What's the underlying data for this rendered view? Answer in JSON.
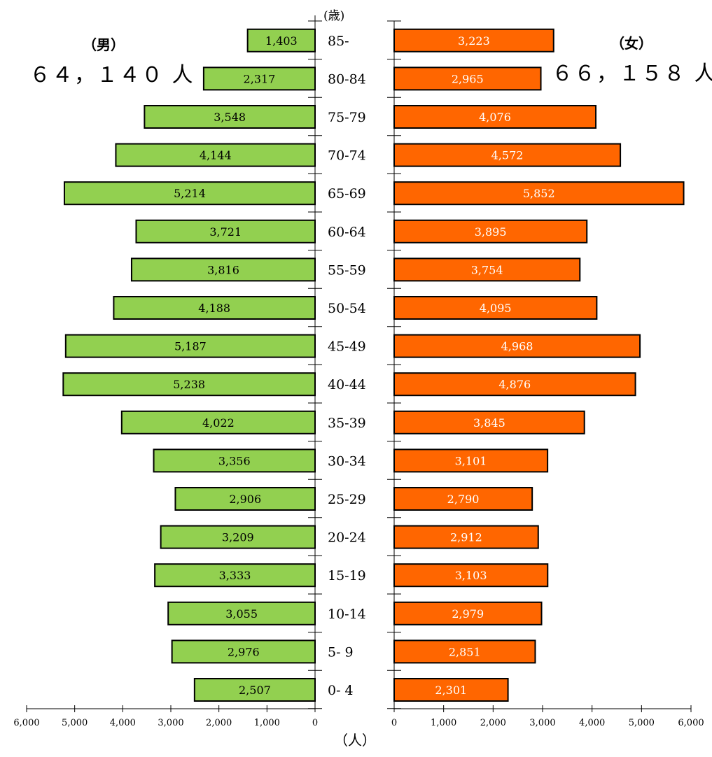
{
  "header": {
    "male_label": "（男）",
    "male_total": "６４，１４０ 人",
    "female_label": "（女）",
    "female_total": "６６，１５８ 人",
    "age_unit": "(歳)",
    "x_unit": "（人）"
  },
  "chart_data": {
    "type": "bar",
    "subtype": "population-pyramid",
    "categories": [
      "85-",
      "80-84",
      "75-79",
      "70-74",
      "65-69",
      "60-64",
      "55-59",
      "50-54",
      "45-49",
      "40-44",
      "35-39",
      "30-34",
      "25-29",
      "20-24",
      "15-19",
      "10-14",
      "5- 9",
      "0- 4"
    ],
    "series": [
      {
        "name": "（男）",
        "color": "#92d050",
        "values": [
          1403,
          2317,
          3548,
          4144,
          5214,
          3721,
          3816,
          4188,
          5187,
          5238,
          4022,
          3356,
          2906,
          3209,
          3333,
          3055,
          2976,
          2507
        ],
        "labels": [
          "1,403",
          "2,317",
          "3,548",
          "4,144",
          "5,214",
          "3,721",
          "3,816",
          "4,188",
          "5,187",
          "5,238",
          "4,022",
          "3,356",
          "2,906",
          "3,209",
          "3,333",
          "3,055",
          "2,976",
          "2,507"
        ]
      },
      {
        "name": "（女）",
        "color": "#ff6600",
        "values": [
          3223,
          2965,
          4076,
          4572,
          5852,
          3895,
          3754,
          4095,
          4968,
          4876,
          3845,
          3101,
          2790,
          2912,
          3103,
          2979,
          2851,
          2301
        ],
        "labels": [
          "3,223",
          "2,965",
          "4,076",
          "4,572",
          "5,852",
          "3,895",
          "3,754",
          "4,095",
          "4,968",
          "4,876",
          "3,845",
          "3,101",
          "2,790",
          "2,912",
          "3,103",
          "2,979",
          "2,851",
          "2,301"
        ]
      }
    ],
    "xlim": [
      0,
      6000
    ],
    "left_ticks": [
      6000,
      5000,
      4000,
      3000,
      2000,
      1000,
      0
    ],
    "left_tick_labels": [
      "6,000",
      "5,000",
      "4,000",
      "3,000",
      "2,000",
      "1,000",
      "0"
    ],
    "right_ticks": [
      0,
      1000,
      2000,
      3000,
      4000,
      5000,
      6000
    ],
    "right_tick_labels": [
      "0",
      "1,000",
      "2,000",
      "3,000",
      "4,000",
      "5,000",
      "6,000"
    ],
    "grid": false,
    "xlabel": "（人）",
    "ylabel": "(歳)"
  }
}
